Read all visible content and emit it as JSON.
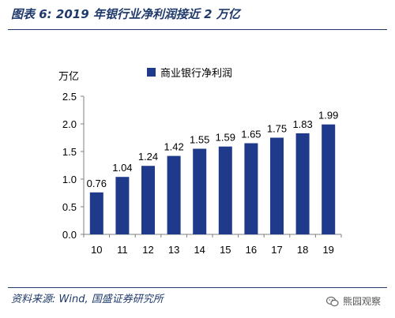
{
  "figure": {
    "title": "图表 6:  2019 年银行业净利润接近 2 万亿",
    "source": "资料来源:  Wind,  国盛证券研究所",
    "watermark": "熊园观察",
    "watermark_icon": "wechat-icon"
  },
  "colors": {
    "bar": "#1f3a8a",
    "title": "#1f3a6b",
    "axis": "#808080",
    "text": "#000000"
  },
  "chart_data": {
    "type": "bar",
    "unit_label": "万亿",
    "categories": [
      "10",
      "11",
      "12",
      "13",
      "14",
      "15",
      "16",
      "17",
      "18",
      "19"
    ],
    "series": [
      {
        "name": "商业银行净利润",
        "values": [
          0.76,
          1.04,
          1.24,
          1.42,
          1.55,
          1.59,
          1.65,
          1.75,
          1.83,
          1.99
        ],
        "labels": [
          "0.76",
          "1.04",
          "1.24",
          "1.42",
          "1.55",
          "1.59",
          "1.65",
          "1.75",
          "1.83",
          "1.99"
        ]
      }
    ],
    "ylim": [
      0,
      2.5
    ],
    "yticks": [
      {
        "value": 0,
        "label": "0.0"
      },
      {
        "value": 0.5,
        "label": "0.5"
      },
      {
        "value": 1.0,
        "label": "1.0"
      },
      {
        "value": 1.5,
        "label": "1.5"
      },
      {
        "value": 2.0,
        "label": "2.0"
      },
      {
        "value": 2.5,
        "label": "2.5"
      }
    ],
    "grid": false,
    "legend_position": "top-right"
  }
}
